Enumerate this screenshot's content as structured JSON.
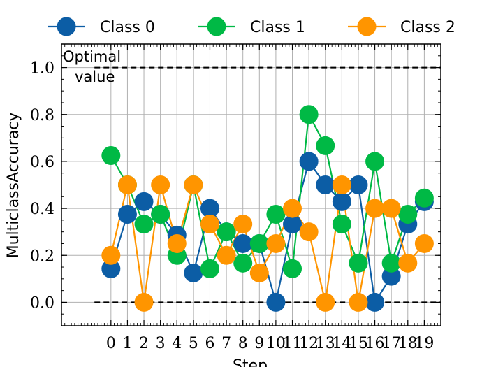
{
  "chart_data": {
    "type": "line",
    "title": "",
    "xlabel": "Step",
    "ylabel": "MulticlassAccuracy",
    "x": [
      0,
      1,
      2,
      3,
      4,
      5,
      6,
      7,
      8,
      9,
      10,
      11,
      12,
      13,
      14,
      15,
      16,
      17,
      18,
      19
    ],
    "xlim": [
      -3,
      20
    ],
    "ylim": [
      -0.1,
      1.1
    ],
    "yticks": [
      0.0,
      0.2,
      0.4,
      0.6,
      0.8,
      1.0
    ],
    "ytick_labels": [
      "0.0",
      "0.2",
      "0.4",
      "0.6",
      "0.8",
      "1.0"
    ],
    "grid": true,
    "legend_position": "top, outside plot, horizontal",
    "series": [
      {
        "name": "Class 0",
        "color": "#0C5DA5",
        "values": [
          0.143,
          0.375,
          0.429,
          0.375,
          0.286,
          0.125,
          0.4,
          0.3,
          0.25,
          0.25,
          0.0,
          0.333,
          0.6,
          0.5,
          0.429,
          0.5,
          0.0,
          0.111,
          0.333,
          0.429
        ]
      },
      {
        "name": "Class 1",
        "color": "#00B945",
        "values": [
          0.625,
          0.5,
          0.333,
          0.375,
          0.2,
          0.5,
          0.143,
          0.3,
          0.167,
          0.25,
          0.375,
          0.143,
          0.8,
          0.667,
          0.333,
          0.167,
          0.6,
          0.167,
          0.375,
          0.444
        ]
      },
      {
        "name": "Class 2",
        "color": "#FF9500",
        "values": [
          0.2,
          0.5,
          0.0,
          0.5,
          0.25,
          0.5,
          0.333,
          0.2,
          0.333,
          0.125,
          0.25,
          0.4,
          0.3,
          0.0,
          0.5,
          0.0,
          0.4,
          0.4,
          0.167,
          0.25
        ]
      }
    ],
    "reference_lines": [
      {
        "y": 1.0,
        "style": "dashed",
        "color": "#000000",
        "label": "Optimal value"
      },
      {
        "y": 0.0,
        "style": "dashed",
        "color": "#000000"
      }
    ],
    "annotations": [
      "Optimal",
      "value"
    ]
  }
}
